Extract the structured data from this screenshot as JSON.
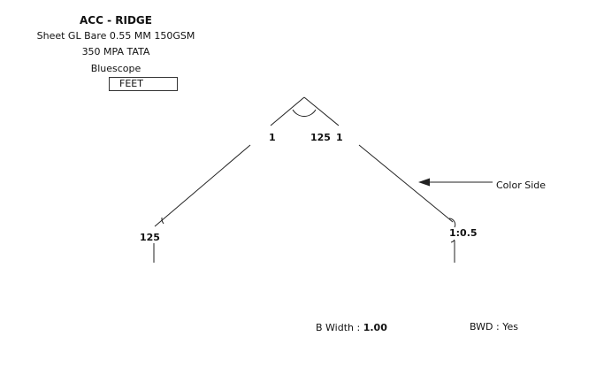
{
  "header": {
    "title": "ACC - RIDGE",
    "material_line1": "Sheet GL Bare 0.55 MM 150GSM 350 MPA TATA",
    "material_line2": "Bluescope"
  },
  "unit_box": {
    "label": "FEET"
  },
  "diagram": {
    "left_inner_label": "1",
    "apex_angle_label": "125",
    "right_inner_label": "1",
    "left_leg_label": "125",
    "right_leg_label": "1:0.5",
    "color_side_label": "Color Side"
  },
  "footer": {
    "b_width_label": "B Width :",
    "b_width_value": "1.00",
    "bwd_label": "BWD : Yes"
  },
  "colors": {
    "line": "#222222",
    "background": "#ffffff"
  }
}
